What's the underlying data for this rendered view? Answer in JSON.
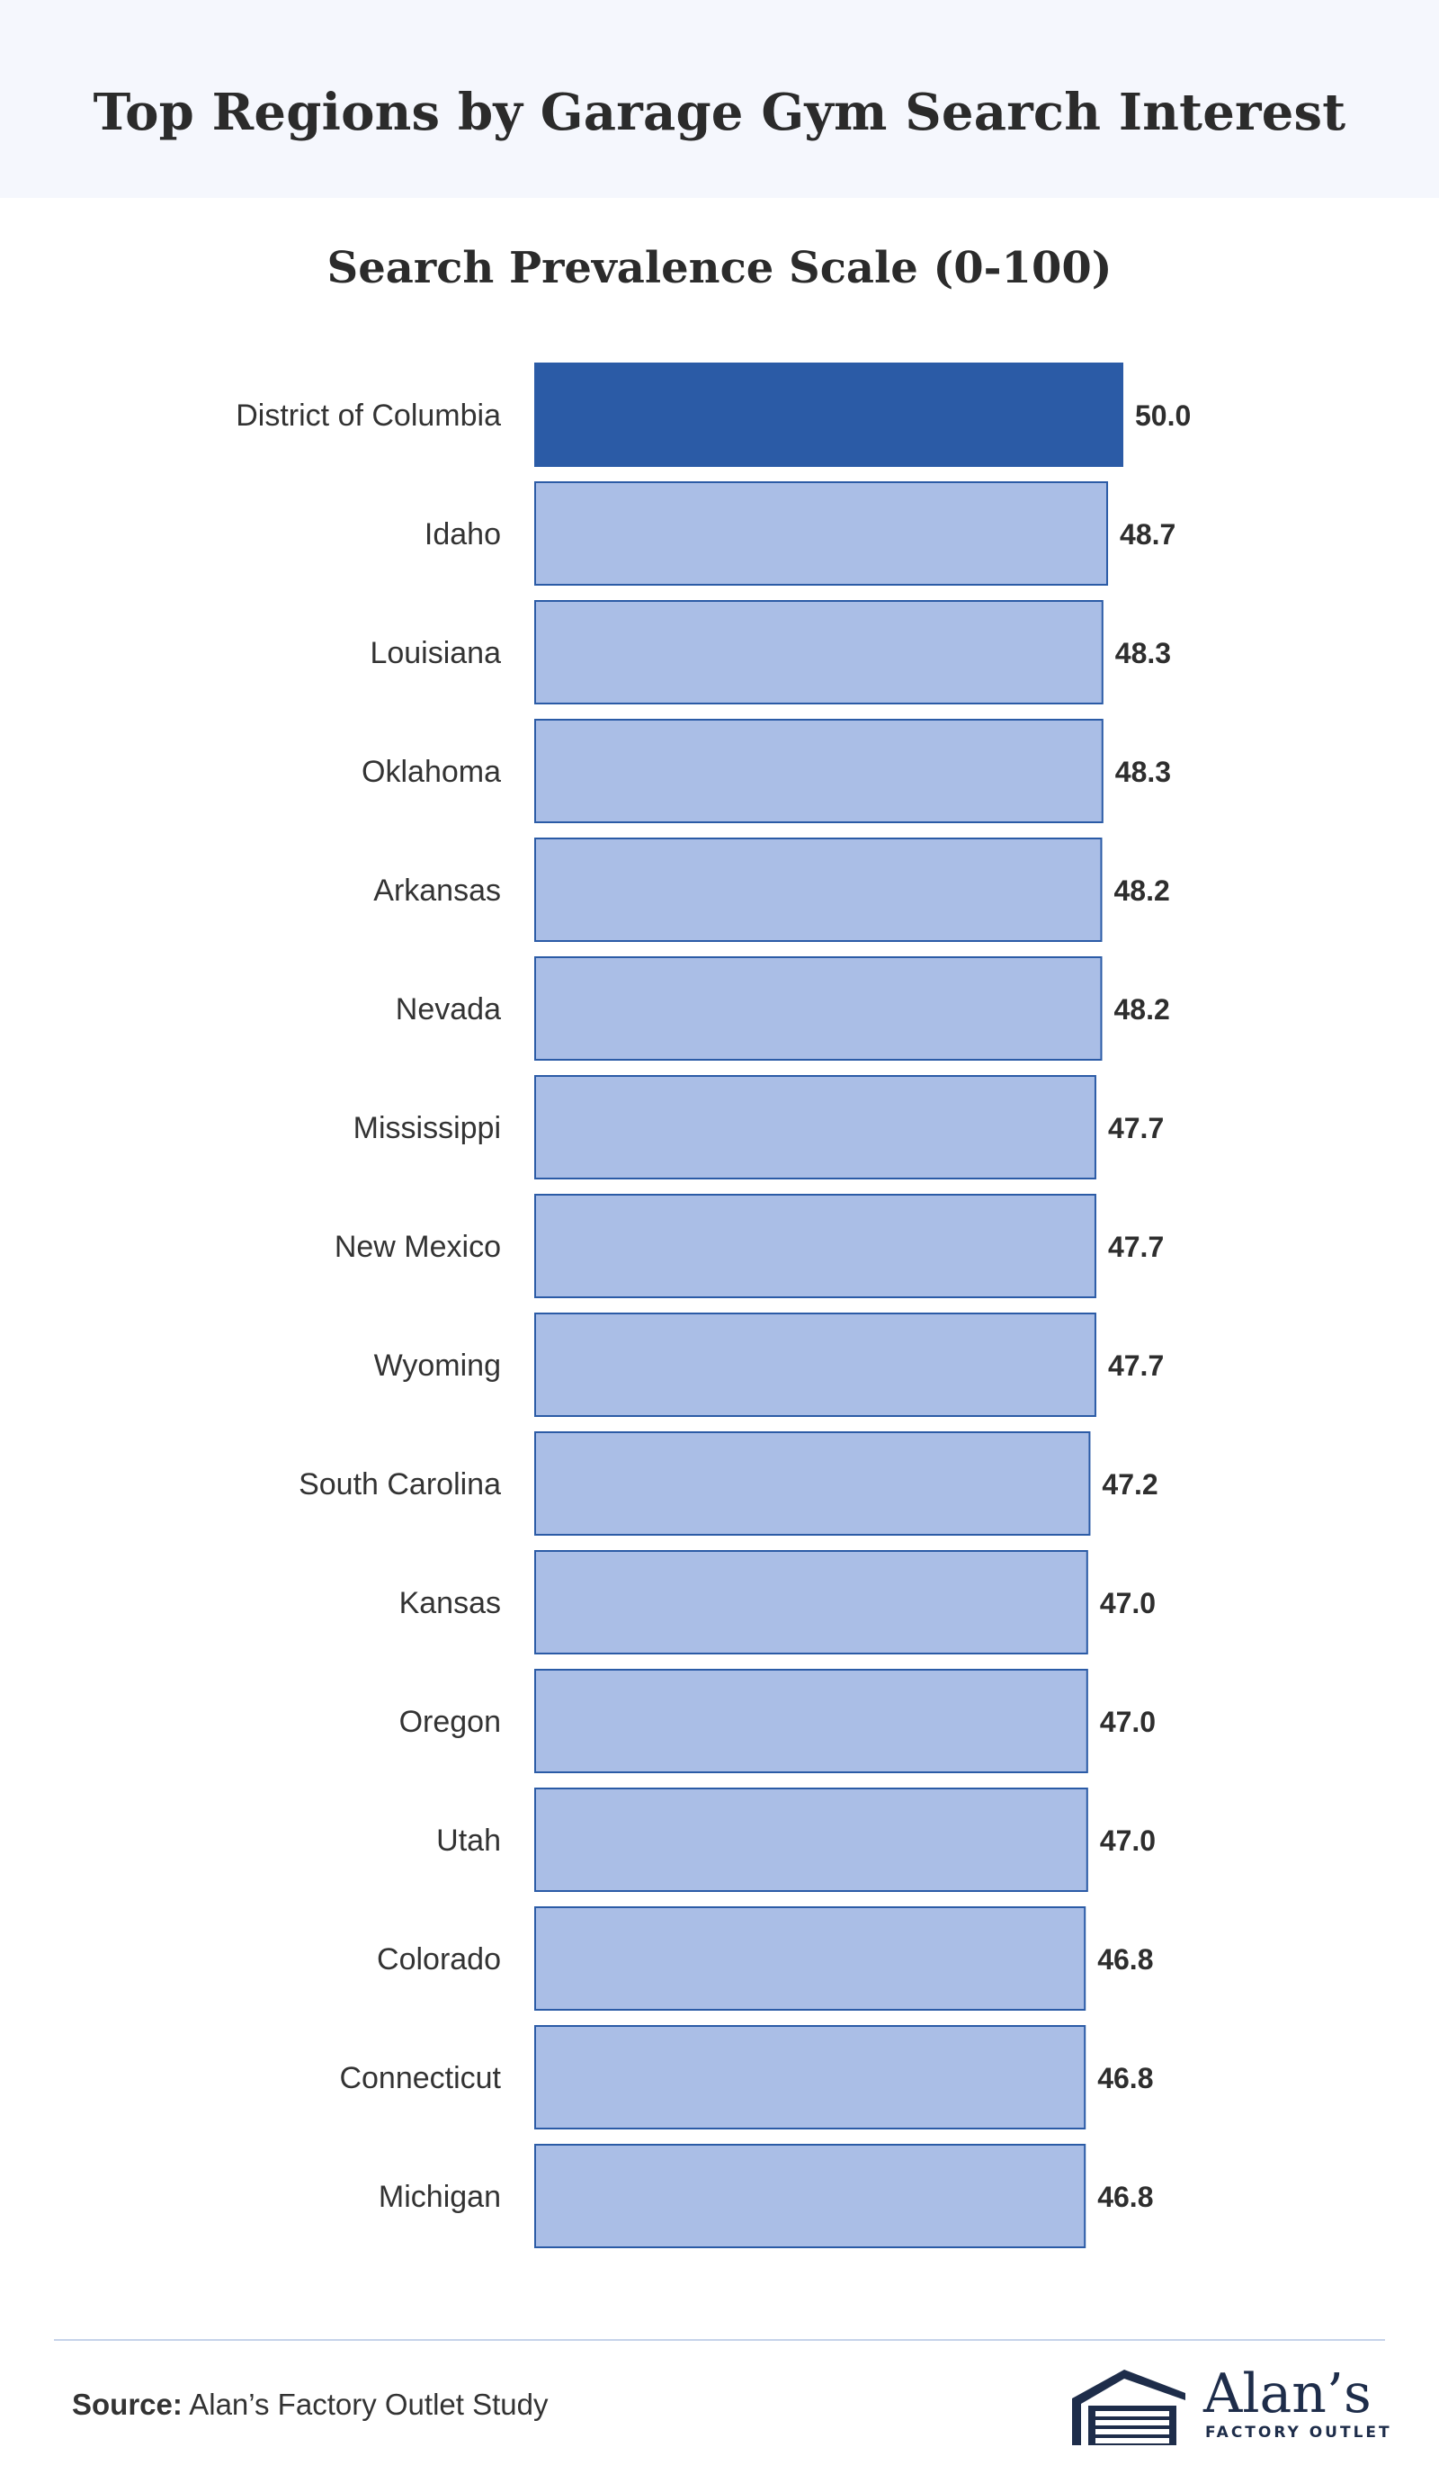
{
  "title": "Top Regions by Garage Gym Search Interest",
  "footer": {
    "source_label": "Source:",
    "source_text": "Alan’s Factory Outlet Study",
    "logo_name": "Alan’s",
    "logo_tagline": "FACTORY OUTLET"
  },
  "colors": {
    "highlight_bar": "#2b5ba6",
    "bar_fill": "#aabee6",
    "bar_border": "#2b5ba6",
    "header_bg": "#f5f7fd",
    "logo": "#1e2d4a"
  },
  "chart_data": {
    "type": "bar",
    "orientation": "horizontal",
    "title": "Search Prevalence Scale (0-100)",
    "xlim": [
      0,
      100
    ],
    "grid": false,
    "highlight_index": 0,
    "categories": [
      "District of Columbia",
      "Idaho",
      "Louisiana",
      "Oklahoma",
      "Arkansas",
      "Nevada",
      "Mississippi",
      "New Mexico",
      "Wyoming",
      "South Carolina",
      "Kansas",
      "Oregon",
      "Utah",
      "Colorado",
      "Connecticut",
      "Michigan"
    ],
    "values": [
      50.0,
      48.7,
      48.3,
      48.3,
      48.2,
      48.2,
      47.7,
      47.7,
      47.7,
      47.2,
      47.0,
      47.0,
      47.0,
      46.8,
      46.8,
      46.8
    ],
    "value_labels": [
      "50.0",
      "48.7",
      "48.3",
      "48.3",
      "48.2",
      "48.2",
      "47.7",
      "47.7",
      "47.7",
      "47.2",
      "47.0",
      "47.0",
      "47.0",
      "46.8",
      "46.8",
      "46.8"
    ]
  }
}
